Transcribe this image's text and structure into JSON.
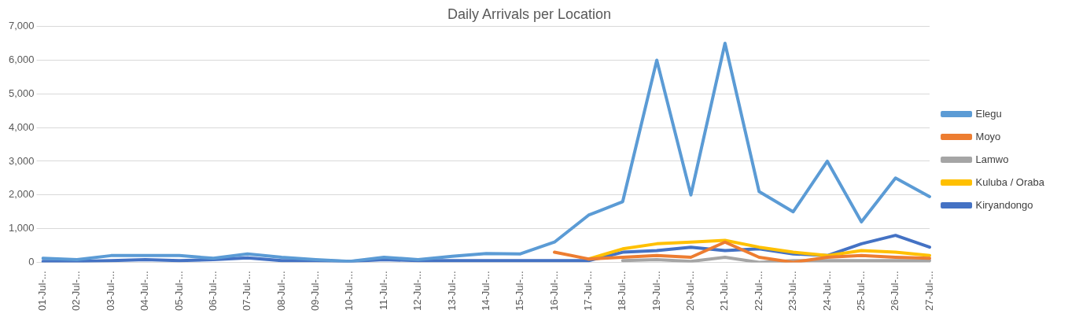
{
  "chart_data": {
    "type": "line",
    "title": "Daily Arrivals per Location",
    "categories": [
      "01-Jul-...",
      "02-Jul-...",
      "03-Jul-...",
      "04-Jul-...",
      "05-Jul-...",
      "06-Jul-...",
      "07-Jul-...",
      "08-Jul-...",
      "09-Jul-...",
      "10-Jul-...",
      "11-Jul-...",
      "12-Jul-...",
      "13-Jul-...",
      "14-Jul-...",
      "15-Jul-...",
      "16-Jul-...",
      "17-Jul-...",
      "18-Jul-...",
      "19-Jul-...",
      "20-Jul-...",
      "21-Jul-...",
      "22-Jul-...",
      "23-Jul-...",
      "24-Jul-...",
      "25-Jul-...",
      "26-Jul-...",
      "27-Jul-..."
    ],
    "series": [
      {
        "name": "Elegu",
        "color": "#5b9bd5",
        "values": [
          120,
          80,
          200,
          200,
          200,
          120,
          250,
          150,
          80,
          30,
          150,
          80,
          180,
          260,
          250,
          600,
          1400,
          1800,
          6000,
          2000,
          6500,
          2100,
          1500,
          3000,
          1200,
          2500,
          1950
        ]
      },
      {
        "name": "Moyo",
        "color": "#ed7d31",
        "values": [
          null,
          null,
          null,
          null,
          null,
          null,
          null,
          null,
          null,
          null,
          null,
          null,
          null,
          null,
          null,
          300,
          100,
          150,
          200,
          150,
          600,
          150,
          0,
          150,
          200,
          150,
          120
        ]
      },
      {
        "name": "Lamwo",
        "color": "#a5a5a5",
        "values": [
          null,
          null,
          null,
          null,
          null,
          null,
          null,
          null,
          null,
          null,
          null,
          null,
          null,
          null,
          null,
          null,
          null,
          50,
          80,
          30,
          150,
          0,
          50,
          50,
          50,
          50,
          50
        ]
      },
      {
        "name": "Kuluba / Oraba",
        "color": "#ffc000",
        "values": [
          null,
          null,
          null,
          null,
          null,
          null,
          null,
          null,
          null,
          null,
          null,
          null,
          null,
          null,
          null,
          null,
          100,
          400,
          550,
          600,
          650,
          450,
          300,
          200,
          350,
          300,
          200
        ]
      },
      {
        "name": "Kiryandongo",
        "color": "#4472c4",
        "values": [
          30,
          30,
          50,
          80,
          50,
          80,
          130,
          50,
          50,
          30,
          80,
          50,
          50,
          50,
          50,
          50,
          50,
          300,
          350,
          450,
          350,
          400,
          250,
          200,
          550,
          800,
          450
        ]
      }
    ],
    "ylim": [
      0,
      7000
    ],
    "yticks": [
      0,
      {
        "value": 1000,
        "label": "1,000"
      },
      {
        "value": 2000,
        "label": "2,000"
      },
      {
        "value": 3000,
        "label": "3,000"
      },
      {
        "value": 4000,
        "label": "4,000"
      },
      {
        "value": 5000,
        "label": "5,000"
      },
      {
        "value": 6000,
        "label": "6,000"
      },
      {
        "value": 7000,
        "label": "7,000"
      }
    ],
    "grid": "y",
    "legend": "right",
    "marker": "none",
    "line_style": "solid"
  }
}
